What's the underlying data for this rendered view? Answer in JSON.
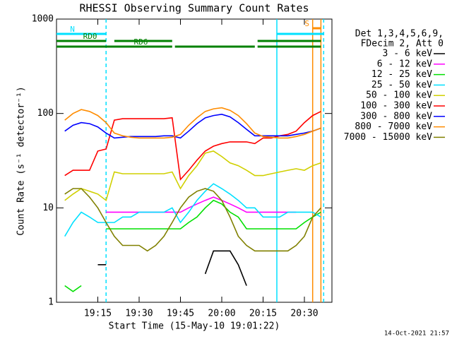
{
  "chart_data": {
    "type": "line",
    "title": "RHESSI Observing Summary Count Rates",
    "x_label": "Start Time (15-May-10 19:01:22)",
    "y_label": "Count Rate (s⁻¹ detector⁻¹)",
    "legend_header": [
      "Det 1,3,4,5,6,9,",
      "FDecim 2, Att 0"
    ],
    "footer": "14-Oct-2021 21:57",
    "log_y": true,
    "x": [
      "19:03",
      "19:06",
      "19:09",
      "19:12",
      "19:15",
      "19:18",
      "19:21",
      "19:24",
      "19:27",
      "19:30",
      "19:33",
      "19:36",
      "19:39",
      "19:42",
      "19:45",
      "19:48",
      "19:51",
      "19:54",
      "19:57",
      "20:00",
      "20:03",
      "20:06",
      "20:09",
      "20:12",
      "20:15",
      "20:18",
      "20:21",
      "20:24",
      "20:27",
      "20:30",
      "20:33",
      "20:36"
    ],
    "xlim": [
      "19:00",
      "20:40"
    ],
    "xticks": [
      "19:15",
      "19:30",
      "19:45",
      "20:00",
      "20:15",
      "20:30"
    ],
    "ylim": [
      1,
      1000
    ],
    "yticks": [
      1,
      10,
      100,
      1000
    ],
    "series": [
      {
        "name": "3 - 6 keV",
        "color": "#000000",
        "values": [
          null,
          null,
          null,
          null,
          2.5,
          2.5,
          null,
          null,
          null,
          null,
          null,
          null,
          null,
          null,
          null,
          null,
          null,
          2,
          3.5,
          3.5,
          3.5,
          2.5,
          1.5,
          null,
          null,
          null,
          null,
          null,
          null,
          null,
          null,
          null
        ]
      },
      {
        "name": "6 - 12 keV",
        "color": "#ff00ff",
        "values": [
          null,
          null,
          null,
          null,
          null,
          9,
          9,
          9,
          9,
          9,
          9,
          9,
          9,
          9,
          9,
          10,
          11,
          12,
          13,
          12,
          11,
          10,
          9,
          9,
          9,
          9,
          9,
          9,
          9,
          null,
          null,
          null
        ]
      },
      {
        "name": "12 - 25 keV",
        "color": "#00e000",
        "values": [
          1.5,
          1.3,
          1.5,
          null,
          null,
          6,
          6,
          6,
          6,
          6,
          6,
          6,
          6,
          6,
          6,
          7,
          8,
          10,
          12,
          11,
          9,
          8,
          6,
          6,
          6,
          6,
          6,
          6,
          6,
          7,
          8,
          9
        ]
      },
      {
        "name": "25 - 50 keV",
        "color": "#00e0ff",
        "values": [
          5,
          7,
          9,
          8,
          7,
          7,
          7,
          8,
          8,
          9,
          9,
          9,
          9,
          10,
          7,
          9,
          12,
          15,
          18,
          16,
          14,
          12,
          10,
          10,
          8,
          8,
          8,
          9,
          9,
          9,
          9,
          8
        ]
      },
      {
        "name": "50 - 100 keV",
        "color": "#d0d000",
        "values": [
          12,
          14,
          16,
          15,
          14,
          12,
          24,
          23,
          23,
          23,
          23,
          23,
          23,
          24,
          16,
          22,
          28,
          38,
          40,
          35,
          30,
          28,
          25,
          22,
          22,
          23,
          24,
          25,
          26,
          25,
          28,
          30
        ]
      },
      {
        "name": "100 - 300 keV",
        "color": "#ff0000",
        "values": [
          22,
          25,
          25,
          25,
          40,
          42,
          85,
          88,
          88,
          88,
          88,
          88,
          88,
          90,
          20,
          25,
          32,
          40,
          45,
          48,
          50,
          50,
          50,
          48,
          55,
          55,
          58,
          60,
          65,
          80,
          95,
          105
        ]
      },
      {
        "name": "300 - 800 keV",
        "color": "#0000ff",
        "values": [
          65,
          75,
          80,
          78,
          72,
          62,
          55,
          56,
          57,
          57,
          57,
          57,
          58,
          58,
          55,
          65,
          78,
          90,
          95,
          98,
          92,
          80,
          68,
          58,
          58,
          58,
          58,
          58,
          60,
          62,
          65,
          70
        ]
      },
      {
        "name": "800 - 7000 keV",
        "color": "#ff8c00",
        "values": [
          85,
          100,
          110,
          105,
          95,
          80,
          62,
          58,
          56,
          55,
          55,
          55,
          55,
          56,
          60,
          75,
          90,
          105,
          112,
          115,
          108,
          95,
          78,
          62,
          57,
          56,
          55,
          55,
          57,
          60,
          65,
          70
        ]
      },
      {
        "name": "7000 - 15000 keV",
        "color": "#808000",
        "values": [
          14,
          16,
          16,
          13,
          10,
          7,
          5,
          4,
          4,
          4,
          3.5,
          4,
          5,
          7,
          10,
          13,
          15,
          16,
          15,
          12,
          8,
          5,
          4,
          3.5,
          3.5,
          3.5,
          3.5,
          3.5,
          4,
          5,
          8,
          10
        ]
      }
    ],
    "markers": [
      {
        "x": "19:18",
        "color": "#00e0ff",
        "dashed": true
      },
      {
        "x": "20:20",
        "color": "#00e0ff",
        "dashed": false
      },
      {
        "x": "20:33",
        "color": "#ff8c00",
        "dashed": false
      },
      {
        "x": "20:36",
        "color": "#ff8c00",
        "dashed": false
      },
      {
        "x": "20:37",
        "color": "#00e0ff",
        "dashed": true
      }
    ],
    "flags": [
      {
        "label": "S",
        "color": "#ff8c00",
        "segments": [
          [
            "20:33",
            "20:36"
          ]
        ]
      },
      {
        "label": "N",
        "color": "#00e0ff",
        "segments": [
          [
            "19:00",
            "19:18"
          ],
          [
            "20:20",
            "20:37"
          ]
        ]
      },
      {
        "label": "RD0",
        "color": "#008000",
        "segments": [
          [
            "19:00",
            "19:18"
          ],
          [
            "19:21",
            "19:42"
          ],
          [
            "20:13",
            "20:36"
          ]
        ]
      },
      {
        "label": "RD6",
        "color": "#008000",
        "segments": [
          [
            "19:00",
            "19:42"
          ],
          [
            "19:43",
            "20:12"
          ],
          [
            "20:13",
            "20:36"
          ]
        ]
      }
    ]
  }
}
